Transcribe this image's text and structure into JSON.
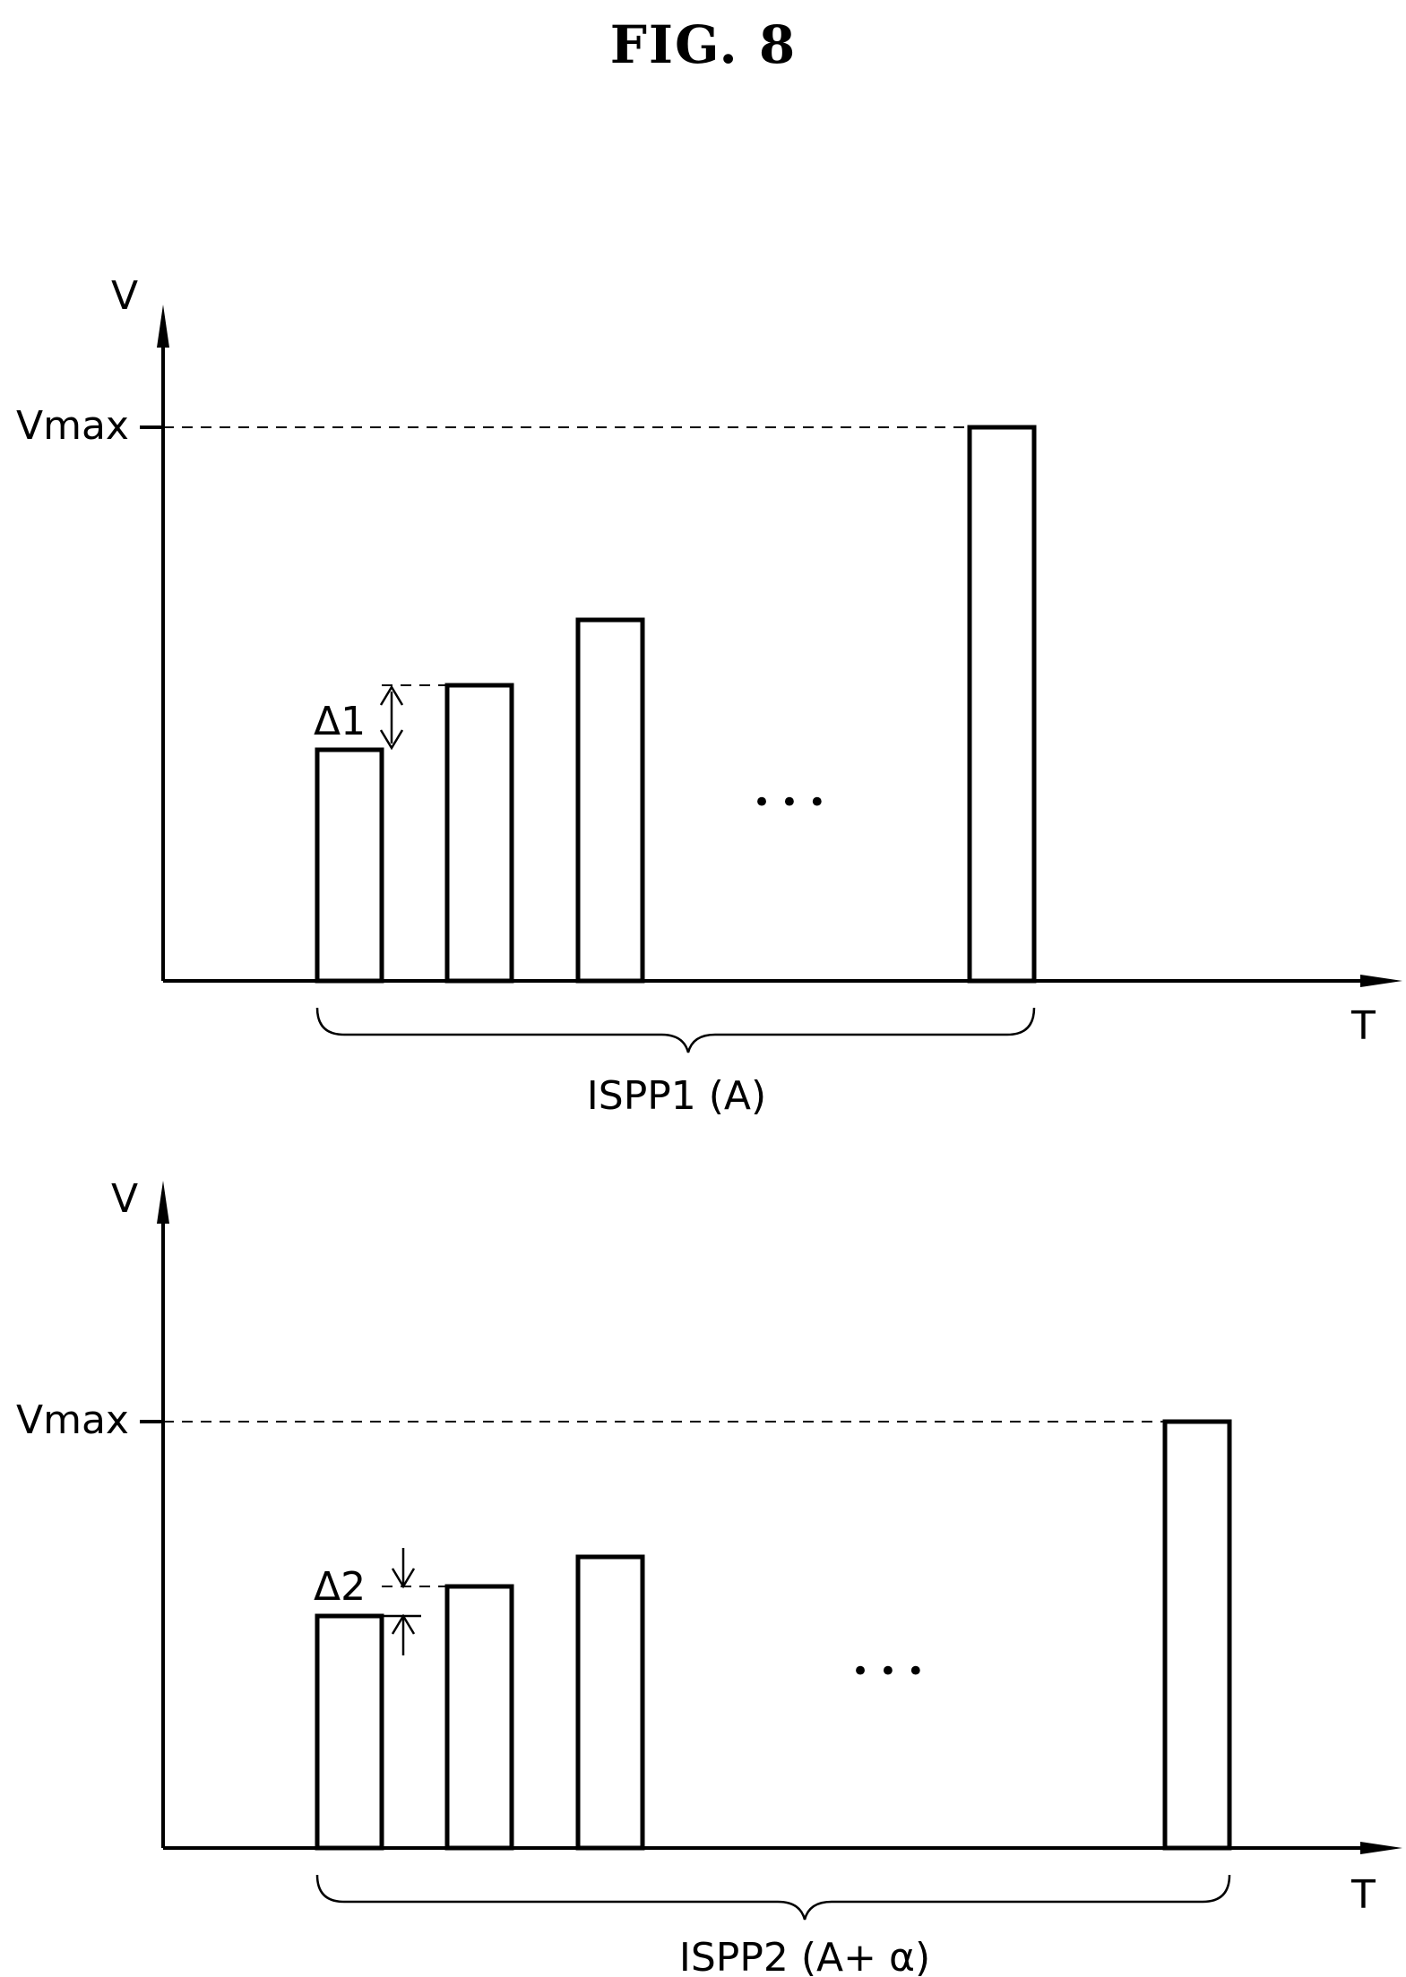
{
  "figure": {
    "title": "FIG. 8",
    "top": {
      "y_axis_label": "V",
      "x_axis_label": "T",
      "vmax_label": "Vmax",
      "delta_label": "Δ1",
      "ellipsis": "• • •",
      "group_label": "ISPP1 (A)"
    },
    "bottom": {
      "y_axis_label": "V",
      "x_axis_label": "T",
      "vmax_label": "Vmax",
      "delta_label": "Δ2",
      "ellipsis": "• • •",
      "group_label": "ISPP2 (A+ α)"
    }
  }
}
